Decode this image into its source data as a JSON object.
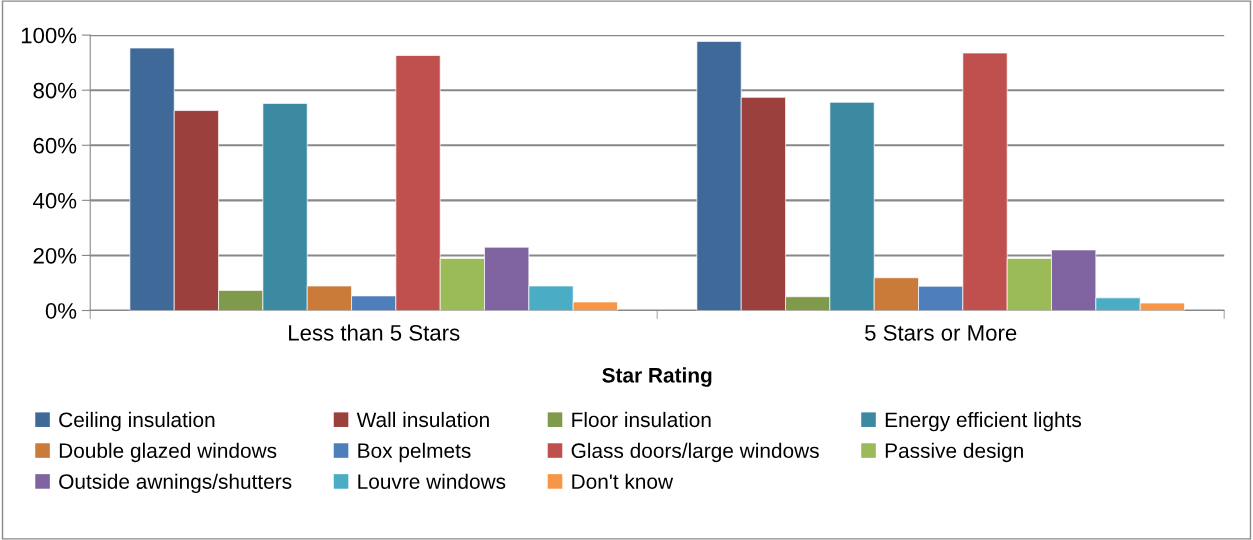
{
  "chart_data": {
    "type": "bar",
    "xlabel": "Star Rating",
    "categories": [
      "Less than 5 Stars",
      "5 Stars or More"
    ],
    "ylim": [
      0,
      100
    ],
    "yticks": [
      {
        "value": 0,
        "label": "0%"
      },
      {
        "value": 20,
        "label": "20%"
      },
      {
        "value": 40,
        "label": "40%"
      },
      {
        "value": 60,
        "label": "60%"
      },
      {
        "value": 80,
        "label": "80%"
      },
      {
        "value": 100,
        "label": "100%"
      }
    ],
    "grid": "y",
    "legend": "bottom",
    "series": [
      {
        "name": "Ceiling insulation",
        "color": "#3f6999",
        "values": [
          95.3,
          97.7
        ]
      },
      {
        "name": "Wall insulation",
        "color": "#9c403d",
        "values": [
          72.6,
          77.4
        ]
      },
      {
        "name": "Floor insulation",
        "color": "#7f9a4a",
        "values": [
          7.3,
          5.0
        ]
      },
      {
        "name": "Energy efficient lights",
        "color": "#3c8aa1",
        "values": [
          75.2,
          75.6
        ]
      },
      {
        "name": "Double glazed windows",
        "color": "#cb7b39",
        "values": [
          8.9,
          11.9
        ]
      },
      {
        "name": "Box pelmets",
        "color": "#4e7fbc",
        "values": [
          5.3,
          8.8
        ]
      },
      {
        "name": "Glass doors/large windows",
        "color": "#c0504d",
        "values": [
          92.6,
          93.5
        ]
      },
      {
        "name": "Passive design",
        "color": "#9bbb59",
        "values": [
          18.9,
          18.9
        ]
      },
      {
        "name": "Outside awnings/shutters",
        "color": "#8064a2",
        "values": [
          23.0,
          22.0
        ]
      },
      {
        "name": "Louvre windows",
        "color": "#4bacc6",
        "values": [
          8.9,
          4.6
        ]
      },
      {
        "name": "Don't know",
        "color": "#f79646",
        "values": [
          3.1,
          2.7
        ]
      }
    ]
  }
}
